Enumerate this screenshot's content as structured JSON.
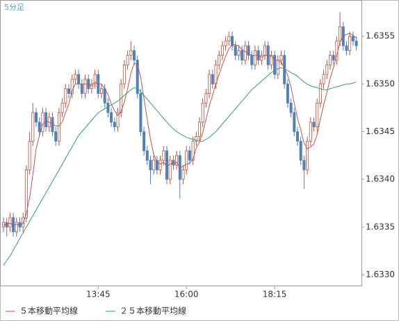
{
  "chart_data": {
    "type": "candlestick",
    "title": "5分足",
    "categories": [
      null,
      null,
      null,
      null,
      null,
      null,
      null,
      null,
      null,
      null,
      null,
      null,
      null,
      null,
      null,
      null,
      null,
      null,
      null,
      null,
      null,
      null,
      null,
      null,
      null,
      null,
      null,
      null,
      null,
      "13:45",
      null,
      null,
      null,
      null,
      null,
      null,
      null,
      null,
      null,
      null,
      null,
      null,
      null,
      null,
      null,
      null,
      null,
      null,
      null,
      null,
      null,
      null,
      null,
      null,
      null,
      null,
      "16:00",
      null,
      null,
      null,
      null,
      null,
      null,
      null,
      null,
      null,
      null,
      null,
      null,
      null,
      null,
      null,
      null,
      null,
      null,
      null,
      null,
      null,
      null,
      null,
      null,
      null,
      null,
      "18:15",
      null,
      null,
      null,
      null,
      null,
      null,
      null,
      null,
      null,
      null,
      null,
      null,
      null,
      null,
      null,
      null,
      null,
      null,
      null,
      null,
      null,
      null,
      null,
      null,
      null
    ],
    "ohlc": [
      [
        1.6335,
        1.6336,
        1.63345,
        1.63355
      ],
      [
        1.63355,
        1.6336,
        1.6334,
        1.6335
      ],
      [
        1.6335,
        1.63365,
        1.63345,
        1.6336
      ],
      [
        1.6336,
        1.63365,
        1.6334,
        1.63345
      ],
      [
        1.63345,
        1.6336,
        1.6334,
        1.63355
      ],
      [
        1.63355,
        1.6336,
        1.63345,
        1.6335
      ],
      [
        1.6335,
        1.63365,
        1.63345,
        1.6336
      ],
      [
        1.6336,
        1.63415,
        1.63355,
        1.6341
      ],
      [
        1.6341,
        1.6345,
        1.63405,
        1.6344
      ],
      [
        1.6344,
        1.6348,
        1.63435,
        1.6347
      ],
      [
        1.6347,
        1.63475,
        1.63455,
        1.6346
      ],
      [
        1.6346,
        1.63465,
        1.63445,
        1.6345
      ],
      [
        1.6345,
        1.63475,
        1.63445,
        1.6347
      ],
      [
        1.6347,
        1.63475,
        1.6345,
        1.63455
      ],
      [
        1.63455,
        1.6347,
        1.6345,
        1.63465
      ],
      [
        1.63465,
        1.6347,
        1.63445,
        1.6345
      ],
      [
        1.6345,
        1.63455,
        1.63435,
        1.6344
      ],
      [
        1.6344,
        1.63475,
        1.63435,
        1.6347
      ],
      [
        1.6347,
        1.63485,
        1.63465,
        1.6348
      ],
      [
        1.6348,
        1.635,
        1.63475,
        1.63495
      ],
      [
        1.63495,
        1.635,
        1.63485,
        1.6349
      ],
      [
        1.6349,
        1.6351,
        1.63485,
        1.63505
      ],
      [
        1.63505,
        1.63515,
        1.635,
        1.6351
      ],
      [
        1.6351,
        1.63515,
        1.63495,
        1.635
      ],
      [
        1.635,
        1.63505,
        1.63485,
        1.6349
      ],
      [
        1.6349,
        1.6351,
        1.63485,
        1.63505
      ],
      [
        1.63505,
        1.6351,
        1.6349,
        1.63495
      ],
      [
        1.63495,
        1.63505,
        1.6349,
        1.635
      ],
      [
        1.635,
        1.63515,
        1.63495,
        1.6351
      ],
      [
        1.6351,
        1.63515,
        1.63485,
        1.6349
      ],
      [
        1.6349,
        1.635,
        1.63485,
        1.63495
      ],
      [
        1.63495,
        1.635,
        1.63475,
        1.6348
      ],
      [
        1.6348,
        1.63485,
        1.63465,
        1.6347
      ],
      [
        1.6347,
        1.63475,
        1.63455,
        1.6346
      ],
      [
        1.6346,
        1.63465,
        1.6345,
        1.63455
      ],
      [
        1.63455,
        1.63475,
        1.6345,
        1.6347
      ],
      [
        1.6347,
        1.63505,
        1.63465,
        1.635
      ],
      [
        1.635,
        1.63525,
        1.63495,
        1.6352
      ],
      [
        1.6352,
        1.63535,
        1.63515,
        1.6353
      ],
      [
        1.6353,
        1.63545,
        1.63525,
        1.63535
      ],
      [
        1.63535,
        1.6354,
        1.6352,
        1.63525
      ],
      [
        1.63525,
        1.6353,
        1.63485,
        1.6349
      ],
      [
        1.6349,
        1.63495,
        1.63445,
        1.6345
      ],
      [
        1.6345,
        1.63455,
        1.63425,
        1.6343
      ],
      [
        1.6343,
        1.63435,
        1.63415,
        1.6342
      ],
      [
        1.6342,
        1.63425,
        1.63395,
        1.6341
      ],
      [
        1.6341,
        1.63425,
        1.63405,
        1.6342
      ],
      [
        1.6342,
        1.63425,
        1.63405,
        1.6341
      ],
      [
        1.6341,
        1.63425,
        1.63405,
        1.6342
      ],
      [
        1.6342,
        1.63435,
        1.63415,
        1.6343
      ],
      [
        1.6343,
        1.63435,
        1.63395,
        1.634
      ],
      [
        1.634,
        1.63425,
        1.63395,
        1.6342
      ],
      [
        1.6342,
        1.63425,
        1.6341,
        1.63415
      ],
      [
        1.63415,
        1.6343,
        1.6341,
        1.63425
      ],
      [
        1.63425,
        1.6343,
        1.6338,
        1.634
      ],
      [
        1.634,
        1.63415,
        1.63395,
        1.6341
      ],
      [
        1.6341,
        1.63435,
        1.63405,
        1.6343
      ],
      [
        1.6343,
        1.63435,
        1.63415,
        1.6342
      ],
      [
        1.6342,
        1.63445,
        1.63415,
        1.6344
      ],
      [
        1.6344,
        1.6345,
        1.63435,
        1.63445
      ],
      [
        1.63445,
        1.63465,
        1.6344,
        1.6346
      ],
      [
        1.6346,
        1.63485,
        1.63455,
        1.6348
      ],
      [
        1.6348,
        1.63495,
        1.63475,
        1.6349
      ],
      [
        1.6349,
        1.63515,
        1.63485,
        1.6351
      ],
      [
        1.6351,
        1.63515,
        1.63495,
        1.635
      ],
      [
        1.635,
        1.63525,
        1.63495,
        1.6352
      ],
      [
        1.6352,
        1.63535,
        1.63515,
        1.6353
      ],
      [
        1.6353,
        1.63545,
        1.63525,
        1.6354
      ],
      [
        1.6354,
        1.6355,
        1.63535,
        1.63545
      ],
      [
        1.63545,
        1.63555,
        1.6354,
        1.6355
      ],
      [
        1.6355,
        1.63555,
        1.63535,
        1.6354
      ],
      [
        1.6354,
        1.63545,
        1.63525,
        1.6353
      ],
      [
        1.6353,
        1.6354,
        1.63525,
        1.63535
      ],
      [
        1.63535,
        1.6354,
        1.6352,
        1.63525
      ],
      [
        1.63525,
        1.63545,
        1.6352,
        1.6354
      ],
      [
        1.6354,
        1.63545,
        1.63525,
        1.6353
      ],
      [
        1.6353,
        1.63535,
        1.63515,
        1.6352
      ],
      [
        1.6352,
        1.6354,
        1.63515,
        1.63535
      ],
      [
        1.63535,
        1.6354,
        1.6352,
        1.63525
      ],
      [
        1.63525,
        1.63535,
        1.6352,
        1.6353
      ],
      [
        1.6353,
        1.63545,
        1.63525,
        1.6354
      ],
      [
        1.6354,
        1.63545,
        1.63515,
        1.6352
      ],
      [
        1.6352,
        1.63535,
        1.63515,
        1.6353
      ],
      [
        1.6353,
        1.63535,
        1.63505,
        1.6351
      ],
      [
        1.6351,
        1.6353,
        1.63505,
        1.63525
      ],
      [
        1.63525,
        1.63535,
        1.6352,
        1.6353
      ],
      [
        1.6353,
        1.63535,
        1.63495,
        1.635
      ],
      [
        1.635,
        1.63505,
        1.63475,
        1.6348
      ],
      [
        1.6348,
        1.63485,
        1.63465,
        1.6347
      ],
      [
        1.6347,
        1.63475,
        1.63445,
        1.6345
      ],
      [
        1.6345,
        1.63455,
        1.63435,
        1.6344
      ],
      [
        1.6344,
        1.63445,
        1.63415,
        1.6342
      ],
      [
        1.6342,
        1.63425,
        1.6339,
        1.6341
      ],
      [
        1.6341,
        1.63445,
        1.63405,
        1.6344
      ],
      [
        1.6344,
        1.63465,
        1.63435,
        1.6346
      ],
      [
        1.6346,
        1.63465,
        1.6345,
        1.63455
      ],
      [
        1.63455,
        1.63485,
        1.6345,
        1.6348
      ],
      [
        1.6348,
        1.63505,
        1.63475,
        1.635
      ],
      [
        1.635,
        1.63515,
        1.63495,
        1.6351
      ],
      [
        1.6351,
        1.63525,
        1.63505,
        1.6352
      ],
      [
        1.6352,
        1.63535,
        1.63515,
        1.6353
      ],
      [
        1.6353,
        1.63535,
        1.6352,
        1.63525
      ],
      [
        1.63525,
        1.6355,
        1.6352,
        1.63545
      ],
      [
        1.63545,
        1.63575,
        1.6354,
        1.6356
      ],
      [
        1.6356,
        1.63565,
        1.63535,
        1.6354
      ],
      [
        1.6354,
        1.63545,
        1.6353,
        1.63535
      ],
      [
        1.63535,
        1.63555,
        1.6353,
        1.6355
      ],
      [
        1.6355,
        1.63555,
        1.6354,
        1.63545
      ],
      [
        1.63545,
        1.6355,
        1.63535,
        1.6354
      ]
    ],
    "up_color": "#b5523b",
    "down_color": "#4f81bd",
    "series": [
      {
        "name": "５本移動平均線",
        "color": "#c0504d",
        "values": [
          1.63352,
          1.63353,
          1.63354,
          1.63352,
          1.63353,
          1.63352,
          1.63354,
          1.63364,
          1.63381,
          1.63405,
          1.63432,
          1.63446,
          1.63458,
          1.63461,
          1.6346,
          1.63458,
          1.63456,
          1.63456,
          1.6346,
          1.6347,
          1.63479,
          1.63493,
          1.635,
          1.635,
          1.635,
          1.635,
          1.635,
          1.63498,
          1.63502,
          1.635,
          1.635,
          1.63495,
          1.63489,
          1.63479,
          1.63472,
          1.63467,
          1.63471,
          1.63481,
          1.63495,
          1.63511,
          1.63522,
          1.6352,
          1.63507,
          1.63485,
          1.63463,
          1.63442,
          1.63426,
          1.63418,
          1.63416,
          1.63418,
          1.63414,
          1.63416,
          1.63417,
          1.63418,
          1.63412,
          1.63414,
          1.63416,
          1.63417,
          1.63421,
          1.63433,
          1.63439,
          1.63449,
          1.63463,
          1.63477,
          1.63488,
          1.635,
          1.6351,
          1.6352,
          1.63529,
          1.63537,
          1.63541,
          1.63541,
          1.6354,
          1.63536,
          1.63534,
          1.63532,
          1.6353,
          1.6353,
          1.6353,
          1.63528,
          1.6353,
          1.6353,
          1.63529,
          1.63525,
          1.63525,
          1.63523,
          1.63517,
          1.63509,
          1.63497,
          1.6348,
          1.63464,
          1.63452,
          1.63438,
          1.63432,
          1.63434,
          1.63437,
          1.63447,
          1.63463,
          1.63478,
          1.63491,
          1.63506,
          1.63517,
          1.6353,
          1.63544,
          1.6355,
          1.63552,
          1.63553,
          1.63551,
          1.63548
        ]
      },
      {
        "name": "２５本移動平均線",
        "color": "#2e9e78",
        "values": [
          1.6331,
          1.63315,
          1.6332,
          1.63326,
          1.63332,
          1.63338,
          1.63344,
          1.6335,
          1.63356,
          1.63362,
          1.63368,
          1.63374,
          1.6338,
          1.63386,
          1.63392,
          1.63398,
          1.63404,
          1.6341,
          1.63416,
          1.63422,
          1.63428,
          1.63434,
          1.6344,
          1.63446,
          1.6345,
          1.63454,
          1.63458,
          1.63462,
          1.63466,
          1.6347,
          1.63472,
          1.63474,
          1.63476,
          1.63478,
          1.6348,
          1.63482,
          1.63485,
          1.63488,
          1.63491,
          1.63494,
          1.63496,
          1.63495,
          1.63492,
          1.63488,
          1.63484,
          1.6348,
          1.63476,
          1.63472,
          1.63468,
          1.63464,
          1.6346,
          1.63456,
          1.63453,
          1.6345,
          1.63448,
          1.63446,
          1.63444,
          1.63443,
          1.63442,
          1.63441,
          1.6344,
          1.6344,
          1.63442,
          1.63444,
          1.63447,
          1.6345,
          1.63454,
          1.63458,
          1.63462,
          1.63466,
          1.6347,
          1.63474,
          1.63478,
          1.63482,
          1.63486,
          1.6349,
          1.63494,
          1.63497,
          1.635,
          1.63503,
          1.63506,
          1.63509,
          1.63512,
          1.63514,
          1.63516,
          1.63517,
          1.63516,
          1.63514,
          1.63512,
          1.6351,
          1.63508,
          1.63505,
          1.63502,
          1.635,
          1.63498,
          1.63497,
          1.63496,
          1.63495,
          1.63494,
          1.63494,
          1.63495,
          1.63496,
          1.63497,
          1.63498,
          1.63499,
          1.635,
          1.635,
          1.63501,
          1.63502
        ]
      }
    ],
    "ylim": [
      1.63288,
      1.63588
    ],
    "yticks": [
      {
        "value": 1.633,
        "label": "1.6330"
      },
      1.6335,
      {
        "value": 1.634,
        "label": "1.6340"
      },
      1.6345,
      {
        "value": 1.635,
        "label": "1.6350"
      },
      1.6355
    ],
    "y_axis_side": "right"
  }
}
